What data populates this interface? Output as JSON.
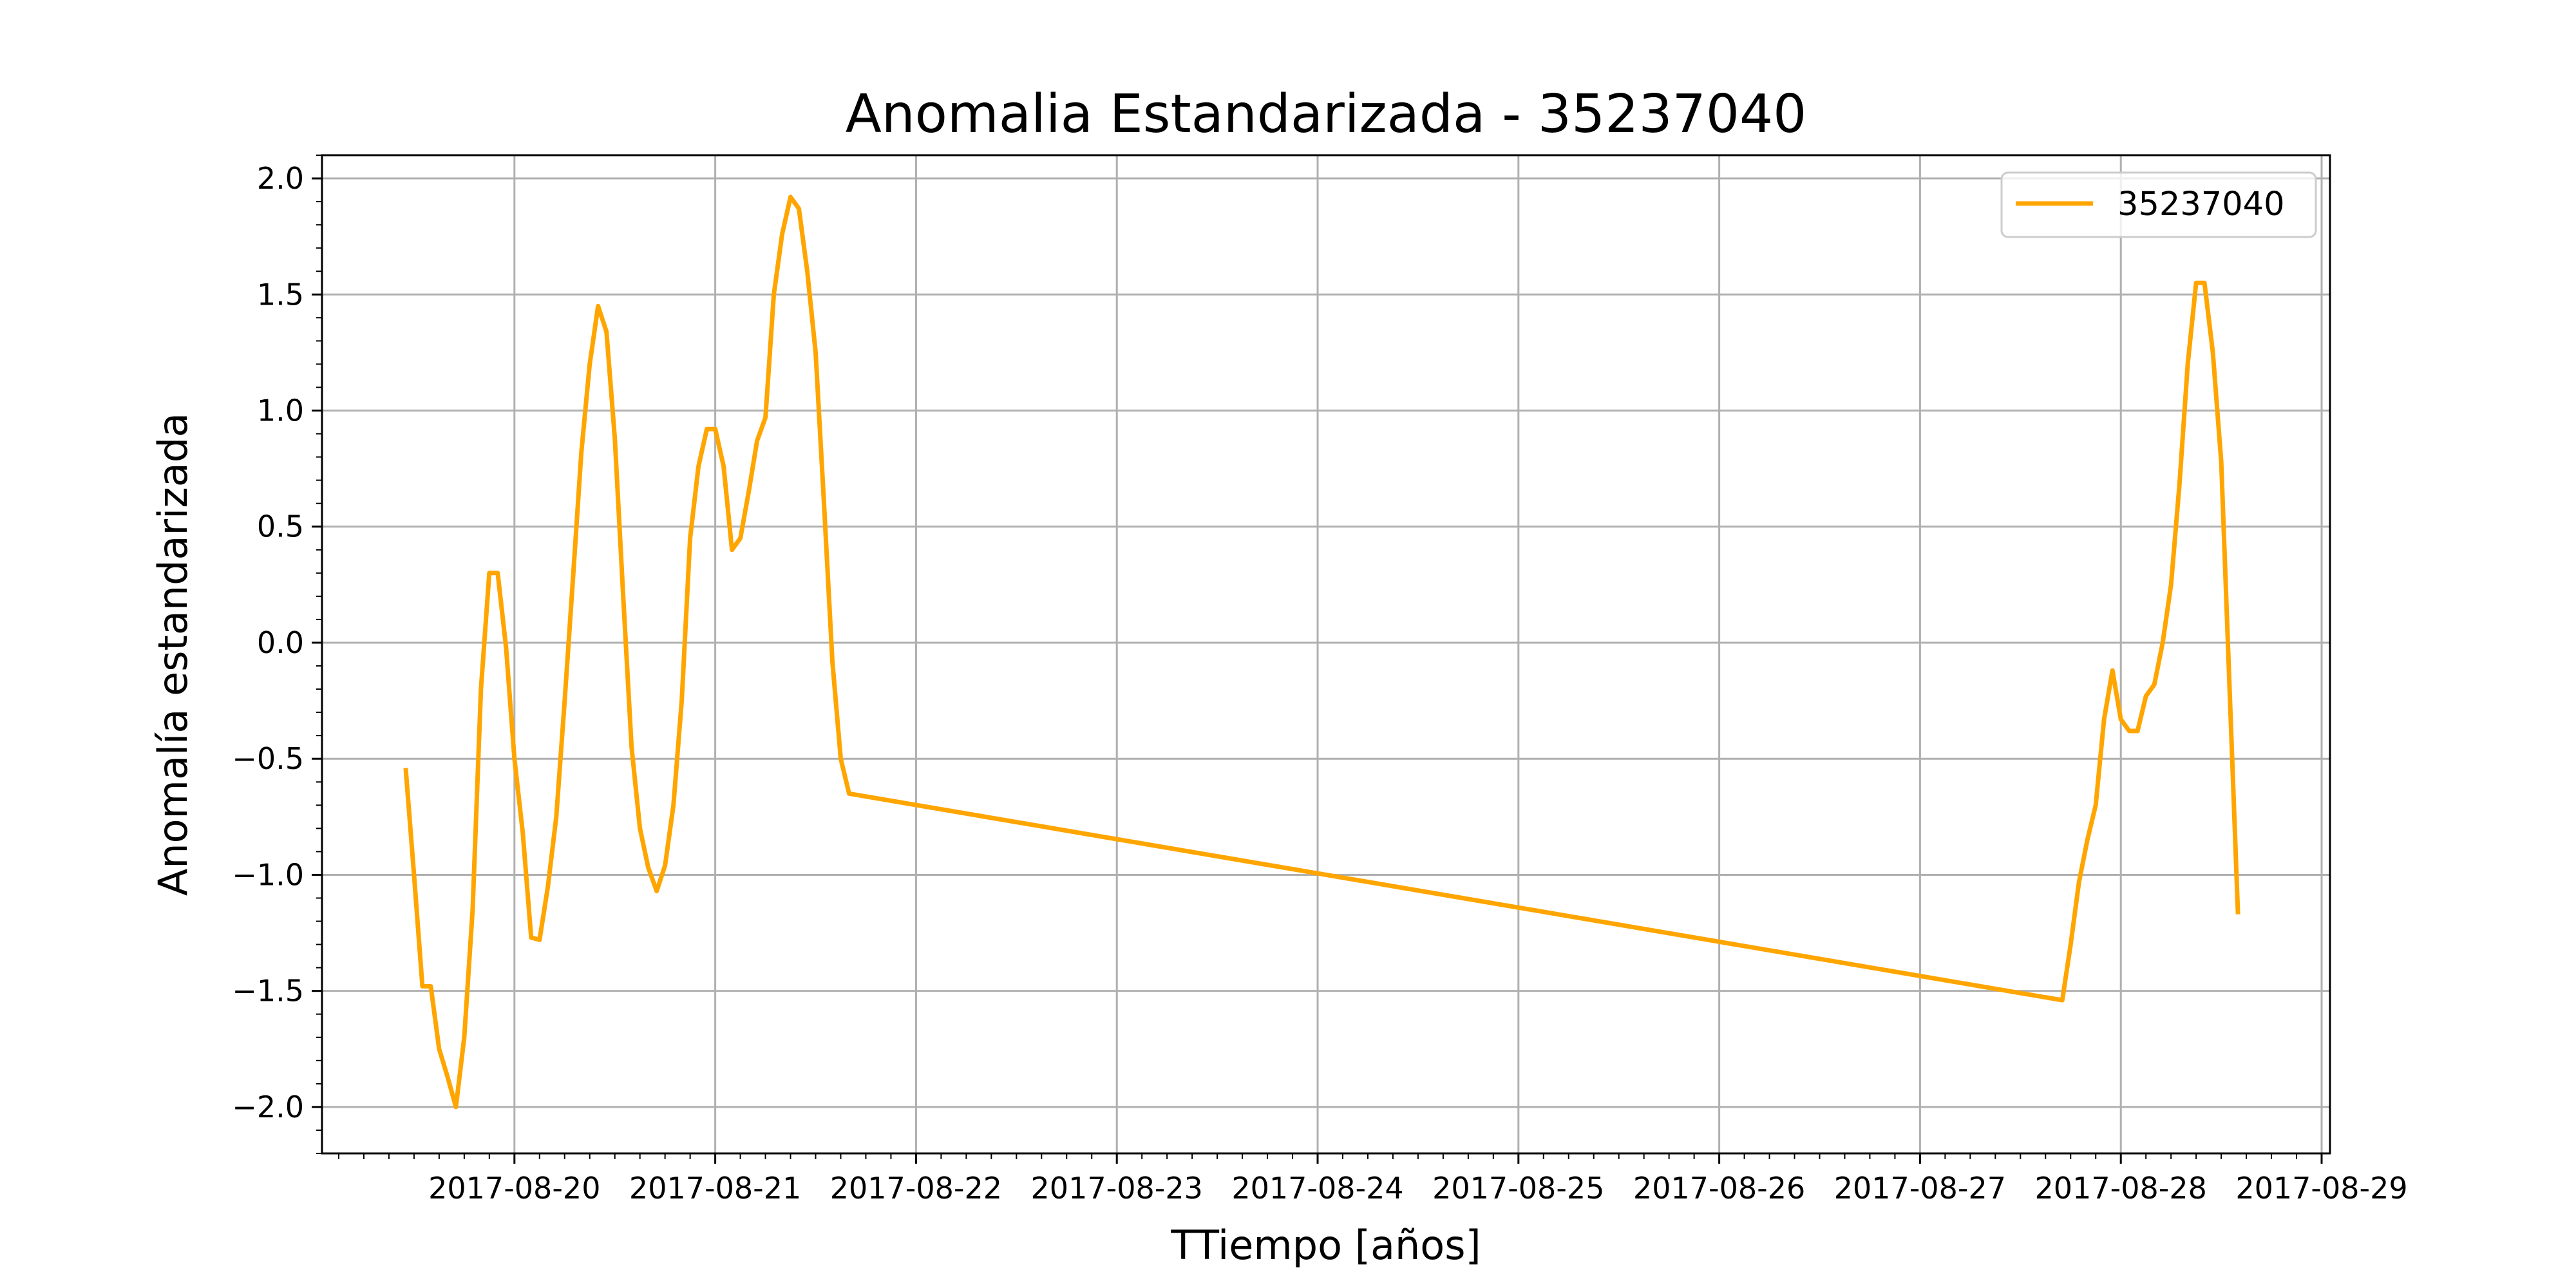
{
  "chart_data": {
    "type": "line",
    "title": "Anomalia Estandarizada - 35237040",
    "xlabel": "TTiempo [años]",
    "ylabel": "Anomalía estandarizada",
    "x_ticks": [
      "2017-08-20",
      "2017-08-21",
      "2017-08-22",
      "2017-08-23",
      "2017-08-24",
      "2017-08-25",
      "2017-08-26",
      "2017-08-27",
      "2017-08-28",
      "2017-08-29"
    ],
    "y_ticks": [
      "−2.0",
      "−1.5",
      "−1.0",
      "−0.5",
      "0.0",
      "0.5",
      "1.0",
      "1.5",
      "2.0"
    ],
    "xlim": [
      "2017-08-19 01:00",
      "2017-08-29 01:00"
    ],
    "ylim": [
      -2.2,
      2.1
    ],
    "grid": true,
    "legend_position": "top-right",
    "line_color": "#ffa500",
    "series": [
      {
        "name": "35237040",
        "points": [
          [
            "2017-08-19 11:00",
            -0.54
          ],
          [
            "2017-08-19 12:00",
            -1.0
          ],
          [
            "2017-08-19 13:00",
            -1.48
          ],
          [
            "2017-08-19 14:00",
            -1.48
          ],
          [
            "2017-08-19 15:00",
            -1.75
          ],
          [
            "2017-08-19 16:00",
            -1.87
          ],
          [
            "2017-08-19 17:00",
            -2.0
          ],
          [
            "2017-08-19 18:00",
            -1.7
          ],
          [
            "2017-08-19 19:00",
            -1.15
          ],
          [
            "2017-08-19 20:00",
            -0.2
          ],
          [
            "2017-08-19 21:00",
            0.3
          ],
          [
            "2017-08-19 22:00",
            0.3
          ],
          [
            "2017-08-19 23:00",
            -0.02
          ],
          [
            "2017-08-20 00:00",
            -0.5
          ],
          [
            "2017-08-20 01:00",
            -0.82
          ],
          [
            "2017-08-20 02:00",
            -1.27
          ],
          [
            "2017-08-20 03:00",
            -1.28
          ],
          [
            "2017-08-20 04:00",
            -1.05
          ],
          [
            "2017-08-20 05:00",
            -0.75
          ],
          [
            "2017-08-20 06:00",
            -0.25
          ],
          [
            "2017-08-20 07:00",
            0.28
          ],
          [
            "2017-08-20 08:00",
            0.82
          ],
          [
            "2017-08-20 09:00",
            1.2
          ],
          [
            "2017-08-20 10:00",
            1.45
          ],
          [
            "2017-08-20 11:00",
            1.34
          ],
          [
            "2017-08-20 12:00",
            0.88
          ],
          [
            "2017-08-20 13:00",
            0.2
          ],
          [
            "2017-08-20 14:00",
            -0.45
          ],
          [
            "2017-08-20 15:00",
            -0.8
          ],
          [
            "2017-08-20 16:00",
            -0.97
          ],
          [
            "2017-08-20 17:00",
            -1.07
          ],
          [
            "2017-08-20 18:00",
            -0.96
          ],
          [
            "2017-08-20 19:00",
            -0.7
          ],
          [
            "2017-08-20 20:00",
            -0.25
          ],
          [
            "2017-08-20 21:00",
            0.45
          ],
          [
            "2017-08-20 22:00",
            0.76
          ],
          [
            "2017-08-20 23:00",
            0.92
          ],
          [
            "2017-08-21 00:00",
            0.92
          ],
          [
            "2017-08-21 01:00",
            0.76
          ],
          [
            "2017-08-21 02:00",
            0.4
          ],
          [
            "2017-08-21 03:00",
            0.45
          ],
          [
            "2017-08-21 04:00",
            0.65
          ],
          [
            "2017-08-21 05:00",
            0.87
          ],
          [
            "2017-08-21 06:00",
            0.97
          ],
          [
            "2017-08-21 07:00",
            1.5
          ],
          [
            "2017-08-21 08:00",
            1.76
          ],
          [
            "2017-08-21 09:00",
            1.92
          ],
          [
            "2017-08-21 10:00",
            1.87
          ],
          [
            "2017-08-21 11:00",
            1.6
          ],
          [
            "2017-08-21 12:00",
            1.25
          ],
          [
            "2017-08-21 13:00",
            0.6
          ],
          [
            "2017-08-21 14:00",
            -0.08
          ],
          [
            "2017-08-21 15:00",
            -0.5
          ],
          [
            "2017-08-21 16:00",
            -0.65
          ],
          [
            "2017-08-27 17:00",
            -1.54
          ],
          [
            "2017-08-27 18:00",
            -1.3
          ],
          [
            "2017-08-27 19:00",
            -1.03
          ],
          [
            "2017-08-27 20:00",
            -0.85
          ],
          [
            "2017-08-27 21:00",
            -0.7
          ],
          [
            "2017-08-27 22:00",
            -0.33
          ],
          [
            "2017-08-27 23:00",
            -0.12
          ],
          [
            "2017-08-28 00:00",
            -0.33
          ],
          [
            "2017-08-28 01:00",
            -0.38
          ],
          [
            "2017-08-28 02:00",
            -0.38
          ],
          [
            "2017-08-28 03:00",
            -0.23
          ],
          [
            "2017-08-28 04:00",
            -0.18
          ],
          [
            "2017-08-28 05:00",
            0.0
          ],
          [
            "2017-08-28 06:00",
            0.25
          ],
          [
            "2017-08-28 07:00",
            0.68
          ],
          [
            "2017-08-28 08:00",
            1.2
          ],
          [
            "2017-08-28 09:00",
            1.55
          ],
          [
            "2017-08-28 10:00",
            1.55
          ],
          [
            "2017-08-28 11:00",
            1.25
          ],
          [
            "2017-08-28 12:00",
            0.78
          ],
          [
            "2017-08-28 13:00",
            -0.2
          ],
          [
            "2017-08-28 14:00",
            -1.17
          ]
        ]
      }
    ]
  }
}
